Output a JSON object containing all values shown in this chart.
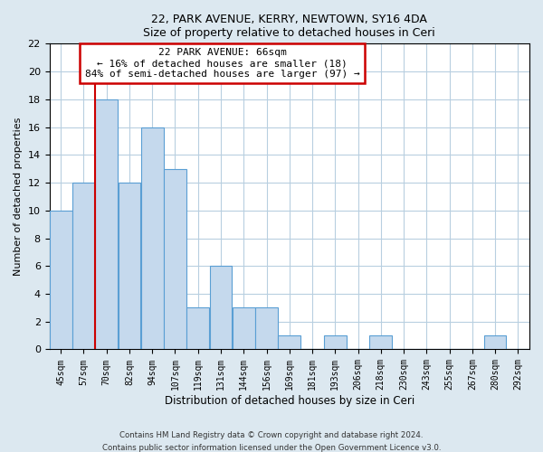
{
  "title1": "22, PARK AVENUE, KERRY, NEWTOWN, SY16 4DA",
  "title2": "Size of property relative to detached houses in Ceri",
  "xlabel": "Distribution of detached houses by size in Ceri",
  "ylabel": "Number of detached properties",
  "bar_labels": [
    "45sqm",
    "57sqm",
    "70sqm",
    "82sqm",
    "94sqm",
    "107sqm",
    "119sqm",
    "131sqm",
    "144sqm",
    "156sqm",
    "169sqm",
    "181sqm",
    "193sqm",
    "206sqm",
    "218sqm",
    "230sqm",
    "243sqm",
    "255sqm",
    "267sqm",
    "280sqm",
    "292sqm"
  ],
  "bar_values": [
    10,
    12,
    18,
    12,
    16,
    13,
    3,
    6,
    3,
    3,
    1,
    0,
    1,
    0,
    1,
    0,
    0,
    0,
    0,
    1,
    0
  ],
  "bar_color": "#c5d9ed",
  "bar_edge_color": "#5a9fd4",
  "reference_line_color": "#cc0000",
  "annotation_title": "22 PARK AVENUE: 66sqm",
  "annotation_line1": "← 16% of detached houses are smaller (18)",
  "annotation_line2": "84% of semi-detached houses are larger (97) →",
  "annotation_box_edge": "#cc0000",
  "ylim": [
    0,
    22
  ],
  "yticks": [
    0,
    2,
    4,
    6,
    8,
    10,
    12,
    14,
    16,
    18,
    20,
    22
  ],
  "footer1": "Contains HM Land Registry data © Crown copyright and database right 2024.",
  "footer2": "Contains public sector information licensed under the Open Government Licence v3.0.",
  "bg_color": "#dce8f0",
  "plot_bg_color": "#ffffff",
  "grid_color": "#b8cfe0"
}
